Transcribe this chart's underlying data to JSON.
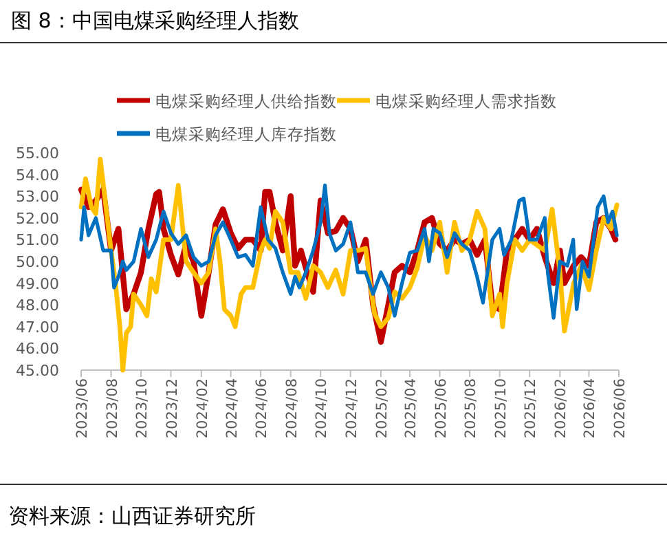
{
  "chart_data": {
    "type": "line",
    "title": "图 8：中国电煤采购经理人指数",
    "annotations": [
      "资料来源：山西证券研究所"
    ],
    "legend": "top",
    "grid": false,
    "line_style": "solid",
    "marker": "none",
    "xlim": [
      "2023-06-01",
      "2026-06-01"
    ],
    "xticks": [
      {
        "value": "2023-06-01",
        "label": "2023/06"
      },
      {
        "value": "2023-08-01",
        "label": "2023/08"
      },
      {
        "value": "2023-10-01",
        "label": "2023/10"
      },
      {
        "value": "2023-12-01",
        "label": "2023/12"
      },
      {
        "value": "2024-02-01",
        "label": "2024/02"
      },
      {
        "value": "2024-04-01",
        "label": "2024/04"
      },
      {
        "value": "2024-06-01",
        "label": "2024/06"
      },
      {
        "value": "2024-08-01",
        "label": "2024/08"
      },
      {
        "value": "2024-10-01",
        "label": "2024/10"
      },
      {
        "value": "2024-12-01",
        "label": "2024/12"
      },
      {
        "value": "2025-02-01",
        "label": "2025/02"
      },
      {
        "value": "2025-04-01",
        "label": "2025/04"
      },
      {
        "value": "2025-06-01",
        "label": "2025/06"
      },
      {
        "value": "2025-08-01",
        "label": "2025/08"
      },
      {
        "value": "2025-10-01",
        "label": "2025/10"
      },
      {
        "value": "2025-12-01",
        "label": "2025/12"
      },
      {
        "value": "2026-02-01",
        "label": "2026/02"
      },
      {
        "value": "2026-04-01",
        "label": "2026/04"
      },
      {
        "value": "2026-06-01",
        "label": "2026/06"
      }
    ],
    "ylim": [
      45,
      55
    ],
    "yticks": [
      {
        "value": 45,
        "label": "45.00"
      },
      {
        "value": 46,
        "label": "46.00"
      },
      {
        "value": 47,
        "label": "47.00"
      },
      {
        "value": 48,
        "label": "48.00"
      },
      {
        "value": 49,
        "label": "49.00"
      },
      {
        "value": 50,
        "label": "50.00"
      },
      {
        "value": 51,
        "label": "51.00"
      },
      {
        "value": 52,
        "label": "52.00"
      },
      {
        "value": 53,
        "label": "53.00"
      },
      {
        "value": 54,
        "label": "54.00"
      },
      {
        "value": 55,
        "label": "55.00"
      }
    ],
    "series": [
      {
        "name": "电煤采购经理人供给指数",
        "color": "#c00000",
        "x": [
          "2023-06-01",
          "2023-06-16",
          "2023-07-01",
          "2023-07-16",
          "2023-08-01",
          "2023-08-16",
          "2023-09-01",
          "2023-09-16",
          "2023-10-01",
          "2023-10-16",
          "2023-11-01",
          "2023-11-07",
          "2023-11-16",
          "2023-12-01",
          "2023-12-16",
          "2024-01-01",
          "2024-01-16",
          "2024-02-01",
          "2024-02-16",
          "2024-03-01",
          "2024-03-16",
          "2024-04-01",
          "2024-04-16",
          "2024-05-01",
          "2024-05-16",
          "2024-06-01",
          "2024-06-10",
          "2024-06-19",
          "2024-07-01",
          "2024-07-16",
          "2024-08-01",
          "2024-08-10",
          "2024-08-22",
          "2024-09-01",
          "2024-09-16",
          "2024-10-01",
          "2024-10-16",
          "2024-11-01",
          "2024-11-16",
          "2024-12-01",
          "2024-12-16",
          "2025-01-01",
          "2025-01-16",
          "2025-02-01",
          "2025-02-16",
          "2025-03-01",
          "2025-03-16",
          "2025-04-01",
          "2025-04-16",
          "2025-05-01",
          "2025-05-16",
          "2025-06-01",
          "2025-06-16",
          "2025-07-01",
          "2025-07-16",
          "2025-08-01",
          "2025-08-16",
          "2025-09-01",
          "2025-09-16",
          "2025-10-01",
          "2025-10-16",
          "2025-11-01",
          "2025-11-16",
          "2025-12-01",
          "2025-12-16",
          "2026-01-01",
          "2026-01-19",
          "2026-02-01",
          "2026-02-10",
          "2026-03-01",
          "2026-03-16",
          "2026-04-01",
          "2026-04-16",
          "2026-05-01",
          "2026-05-16",
          "2026-05-25"
        ],
        "values": [
          53.3,
          52.5,
          52.8,
          53.3,
          50.5,
          51.5,
          47.8,
          48.5,
          49.5,
          51.5,
          53.1,
          53.2,
          51.5,
          50.3,
          49.4,
          50.8,
          50,
          47.5,
          49.5,
          51.7,
          52.4,
          51.3,
          50.6,
          51,
          51,
          50.5,
          53.2,
          53.2,
          51.8,
          50.5,
          53,
          49.8,
          50.5,
          49.7,
          48.6,
          52.8,
          51.3,
          51.4,
          52,
          51.5,
          50,
          51,
          48,
          46.3,
          48,
          49.5,
          49.8,
          49.5,
          50.5,
          51.8,
          52,
          50.8,
          50.5,
          51,
          50.8,
          51,
          50.3,
          51,
          48,
          47.8,
          50.5,
          51,
          51.5,
          51,
          51.5,
          50.2,
          49,
          50.5,
          49,
          49.8,
          50.2,
          49.8,
          51.8,
          52,
          51.5,
          51
        ]
      },
      {
        "name": "电煤采购经理人需求指数",
        "color": "#ffc000",
        "x": [
          "2023-06-01",
          "2023-06-10",
          "2023-06-22",
          "2023-07-01",
          "2023-07-10",
          "2023-07-19",
          "2023-08-01",
          "2023-08-10",
          "2023-08-19",
          "2023-08-25",
          "2023-09-01",
          "2023-09-10",
          "2023-09-16",
          "2023-10-01",
          "2023-10-13",
          "2023-10-22",
          "2023-11-01",
          "2023-11-16",
          "2023-12-01",
          "2023-12-16",
          "2024-01-01",
          "2024-01-16",
          "2024-02-01",
          "2024-02-16",
          "2024-03-01",
          "2024-03-10",
          "2024-03-19",
          "2024-04-01",
          "2024-04-10",
          "2024-04-22",
          "2024-05-01",
          "2024-05-16",
          "2024-06-01",
          "2024-06-10",
          "2024-06-19",
          "2024-07-01",
          "2024-07-16",
          "2024-08-01",
          "2024-08-16",
          "2024-09-01",
          "2024-09-16",
          "2024-10-01",
          "2024-10-16",
          "2024-11-01",
          "2024-11-16",
          "2024-12-01",
          "2024-12-16",
          "2025-01-01",
          "2025-01-10",
          "2025-01-19",
          "2025-02-01",
          "2025-02-16",
          "2025-03-01",
          "2025-03-16",
          "2025-04-01",
          "2025-04-16",
          "2025-05-01",
          "2025-05-16",
          "2025-06-01",
          "2025-06-16",
          "2025-07-01",
          "2025-07-16",
          "2025-08-01",
          "2025-08-16",
          "2025-09-01",
          "2025-09-16",
          "2025-10-01",
          "2025-10-07",
          "2025-10-16",
          "2025-11-01",
          "2025-11-16",
          "2025-12-01",
          "2026-01-01",
          "2026-01-16",
          "2026-02-01",
          "2026-02-10",
          "2026-03-01",
          "2026-03-16",
          "2026-04-01",
          "2026-04-16",
          "2026-05-01",
          "2026-05-16",
          "2026-05-28"
        ],
        "values": [
          52.5,
          53.8,
          52.5,
          52.2,
          54.7,
          53,
          50.5,
          49,
          47,
          45,
          46.7,
          47,
          48.5,
          48,
          47.5,
          49.2,
          48.6,
          51,
          51,
          53.5,
          50,
          49.5,
          49,
          49.5,
          51.5,
          50,
          47.8,
          47.5,
          47,
          48.5,
          48.8,
          48.8,
          50.5,
          51,
          50.6,
          52.3,
          51.8,
          49.5,
          49.5,
          48.3,
          49.8,
          49.5,
          48.8,
          49.6,
          48.5,
          50.5,
          50.5,
          50.6,
          49,
          47.6,
          47,
          47.4,
          48.6,
          48.3,
          48.8,
          49.7,
          51.2,
          50.5,
          51.8,
          49.5,
          51.8,
          50.5,
          51,
          52.3,
          51.5,
          47.5,
          48.5,
          47,
          49,
          51,
          50.5,
          51,
          50.5,
          52.4,
          49.5,
          46.8,
          49,
          49.8,
          48.7,
          50.5,
          52,
          51.5,
          52.6
        ]
      },
      {
        "name": "电煤采购经理人库存指数",
        "color": "#0070c0",
        "x": [
          "2023-06-01",
          "2023-06-07",
          "2023-06-16",
          "2023-07-01",
          "2023-07-16",
          "2023-08-01",
          "2023-08-07",
          "2023-08-16",
          "2023-08-25",
          "2023-09-01",
          "2023-09-16",
          "2023-10-01",
          "2023-10-16",
          "2023-11-01",
          "2023-11-16",
          "2023-12-01",
          "2023-12-16",
          "2024-01-01",
          "2024-01-16",
          "2024-02-01",
          "2024-02-16",
          "2024-03-01",
          "2024-03-16",
          "2024-04-01",
          "2024-04-16",
          "2024-05-01",
          "2024-05-16",
          "2024-06-01",
          "2024-06-16",
          "2024-07-01",
          "2024-07-16",
          "2024-08-01",
          "2024-08-10",
          "2024-08-19",
          "2024-09-01",
          "2024-09-16",
          "2024-10-01",
          "2024-10-10",
          "2024-10-19",
          "2024-11-01",
          "2024-11-16",
          "2024-12-01",
          "2024-12-16",
          "2025-01-01",
          "2025-01-16",
          "2025-02-01",
          "2025-02-16",
          "2025-03-01",
          "2025-03-16",
          "2025-04-01",
          "2025-04-16",
          "2025-05-01",
          "2025-05-10",
          "2025-05-19",
          "2025-06-01",
          "2025-06-16",
          "2025-07-01",
          "2025-07-16",
          "2025-08-01",
          "2025-08-16",
          "2025-08-28",
          "2025-09-16",
          "2025-10-01",
          "2025-10-10",
          "2025-10-25",
          "2025-11-10",
          "2025-11-19",
          "2025-12-01",
          "2025-12-16",
          "2026-01-01",
          "2026-01-07",
          "2026-01-19",
          "2026-02-01",
          "2026-02-16",
          "2026-02-28",
          "2026-03-07",
          "2026-03-19",
          "2026-04-01",
          "2026-04-19",
          "2026-05-01",
          "2026-05-10",
          "2026-05-19",
          "2026-05-28"
        ],
        "values": [
          51,
          52.5,
          51.2,
          52,
          50.5,
          50.5,
          48.8,
          49.3,
          50,
          49.6,
          50,
          51.5,
          50.2,
          51,
          52.3,
          51.3,
          50.8,
          51.2,
          50.2,
          49.8,
          50,
          51.2,
          51.8,
          51,
          50.2,
          50.3,
          49.8,
          52.5,
          51,
          50.6,
          49.5,
          48.5,
          49.3,
          48.8,
          49.5,
          50.5,
          51.8,
          53.5,
          51.3,
          50.5,
          50.8,
          51.8,
          49.5,
          49.5,
          48.5,
          49.5,
          48.8,
          47.5,
          49,
          50.4,
          50.5,
          51.5,
          50,
          51.5,
          51.3,
          50.2,
          51.3,
          50.8,
          50.5,
          49.3,
          48.1,
          51,
          51.5,
          50.3,
          51,
          52.8,
          52.9,
          51,
          51,
          52,
          49.5,
          47.4,
          50,
          49.8,
          51,
          47.8,
          50,
          49.3,
          52.5,
          53,
          51.8,
          52.3,
          51.2
        ]
      }
    ]
  }
}
